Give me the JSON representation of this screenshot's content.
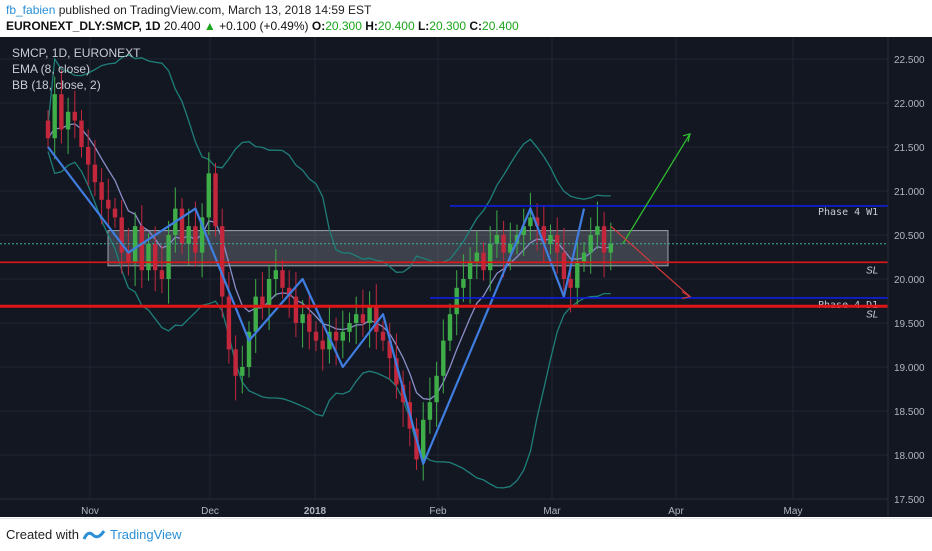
{
  "header": {
    "author": "fb_fabien",
    "published_text": "published on TradingView.com, March 13, 2018 14:59 EST",
    "symbol": "EURONEXT_DLY:SMCP, 1D",
    "last": "20.400",
    "change_arrow": "▲",
    "change": "+0.100 (+0.49%)",
    "o_label": "O:",
    "o": "20.300",
    "h_label": "H:",
    "h": "20.400",
    "l_label": "L:",
    "l": "20.300",
    "c_label": "C:",
    "c": "20.400"
  },
  "legend": {
    "title": "SMCP, 1D, EURONEXT",
    "ema": "EMA (8, close)",
    "bb": "BB (18, close, 2)"
  },
  "footer": {
    "created": "Created with",
    "brand": "TradingView"
  },
  "colors": {
    "background": "#131722",
    "grid": "#1f2533",
    "up": "#3fae49",
    "down": "#c2273c",
    "ema": "#8a8fc9",
    "bb": "#1f7f79",
    "ema_fast": "#8b2a2a",
    "pattern": "#3f7ee0",
    "level_blue": "#0f1fe0",
    "level_red": "#e01515",
    "box": "#8b8f98",
    "arrow_up": "#2fc42f",
    "arrow_down": "#d13a3a"
  },
  "chart_data": {
    "type": "candlestick",
    "title": "SMCP, 1D, EURONEXT",
    "xlabel": "",
    "ylabel": "",
    "ylim": [
      17.5,
      22.75
    ],
    "x_ticks": [
      "Nov",
      "Dec",
      "2018",
      "Feb",
      "Mar",
      "Apr",
      "May"
    ],
    "y_ticks": [
      "17.500",
      "18.000",
      "18.500",
      "19.000",
      "19.500",
      "20.000",
      "20.500",
      "21.000",
      "21.500",
      "22.000",
      "22.500"
    ],
    "grid": true,
    "series": [
      {
        "name": "SMCP",
        "closes": [
          21.6,
          22.1,
          21.7,
          21.9,
          21.8,
          21.5,
          21.3,
          21.1,
          20.9,
          20.8,
          20.7,
          20.3,
          20.2,
          20.6,
          20.1,
          20.4,
          20.1,
          20.0,
          20.5,
          20.8,
          20.4,
          20.6,
          20.3,
          20.7,
          21.2,
          20.6,
          19.8,
          19.2,
          18.9,
          19.0,
          19.4,
          19.8,
          19.7,
          20.0,
          20.1,
          19.9,
          19.8,
          19.5,
          19.6,
          19.4,
          19.3,
          19.2,
          19.4,
          19.3,
          19.4,
          19.5,
          19.6,
          19.5,
          19.7,
          19.4,
          19.3,
          19.1,
          18.8,
          18.6,
          18.3,
          17.95,
          18.4,
          18.6,
          18.9,
          19.3,
          19.6,
          19.9,
          20.0,
          20.2,
          20.3,
          20.1,
          20.4,
          20.5,
          20.3,
          20.4,
          20.5,
          20.6,
          20.7,
          20.6,
          20.4,
          20.5,
          20.3,
          20.0,
          19.9,
          20.2,
          20.3,
          20.5,
          20.6,
          20.3,
          20.4
        ],
        "last": 20.4
      }
    ],
    "ema": {
      "name": "EMA (8, close)"
    },
    "bollinger": {
      "name": "BB (18, close, 2)"
    },
    "levels": [
      {
        "label": "Phase 4 W1",
        "value": 20.83,
        "value_label": "20.830",
        "color": "level_blue"
      },
      {
        "label": "SL",
        "value": 20.19,
        "value_label": "20.190",
        "color": "level_red"
      },
      {
        "label": "Phase 4 D1",
        "value": 19.785,
        "value_label": "19.785",
        "color": "level_blue"
      },
      {
        "label": "SL",
        "value": 19.69,
        "value_label": "19.690",
        "color": "level_red"
      }
    ],
    "last_price_label": "20.400",
    "range_box": {
      "y_high": 20.55,
      "y_low": 20.15
    },
    "pattern_points": [
      [
        21.5,
        0
      ],
      [
        20.3,
        12
      ],
      [
        20.8,
        22
      ],
      [
        19.3,
        30
      ],
      [
        20.0,
        38
      ],
      [
        19.0,
        44
      ],
      [
        19.6,
        50
      ],
      [
        17.9,
        56
      ],
      [
        20.8,
        72
      ],
      [
        19.8,
        77
      ],
      [
        20.8,
        80
      ]
    ]
  }
}
